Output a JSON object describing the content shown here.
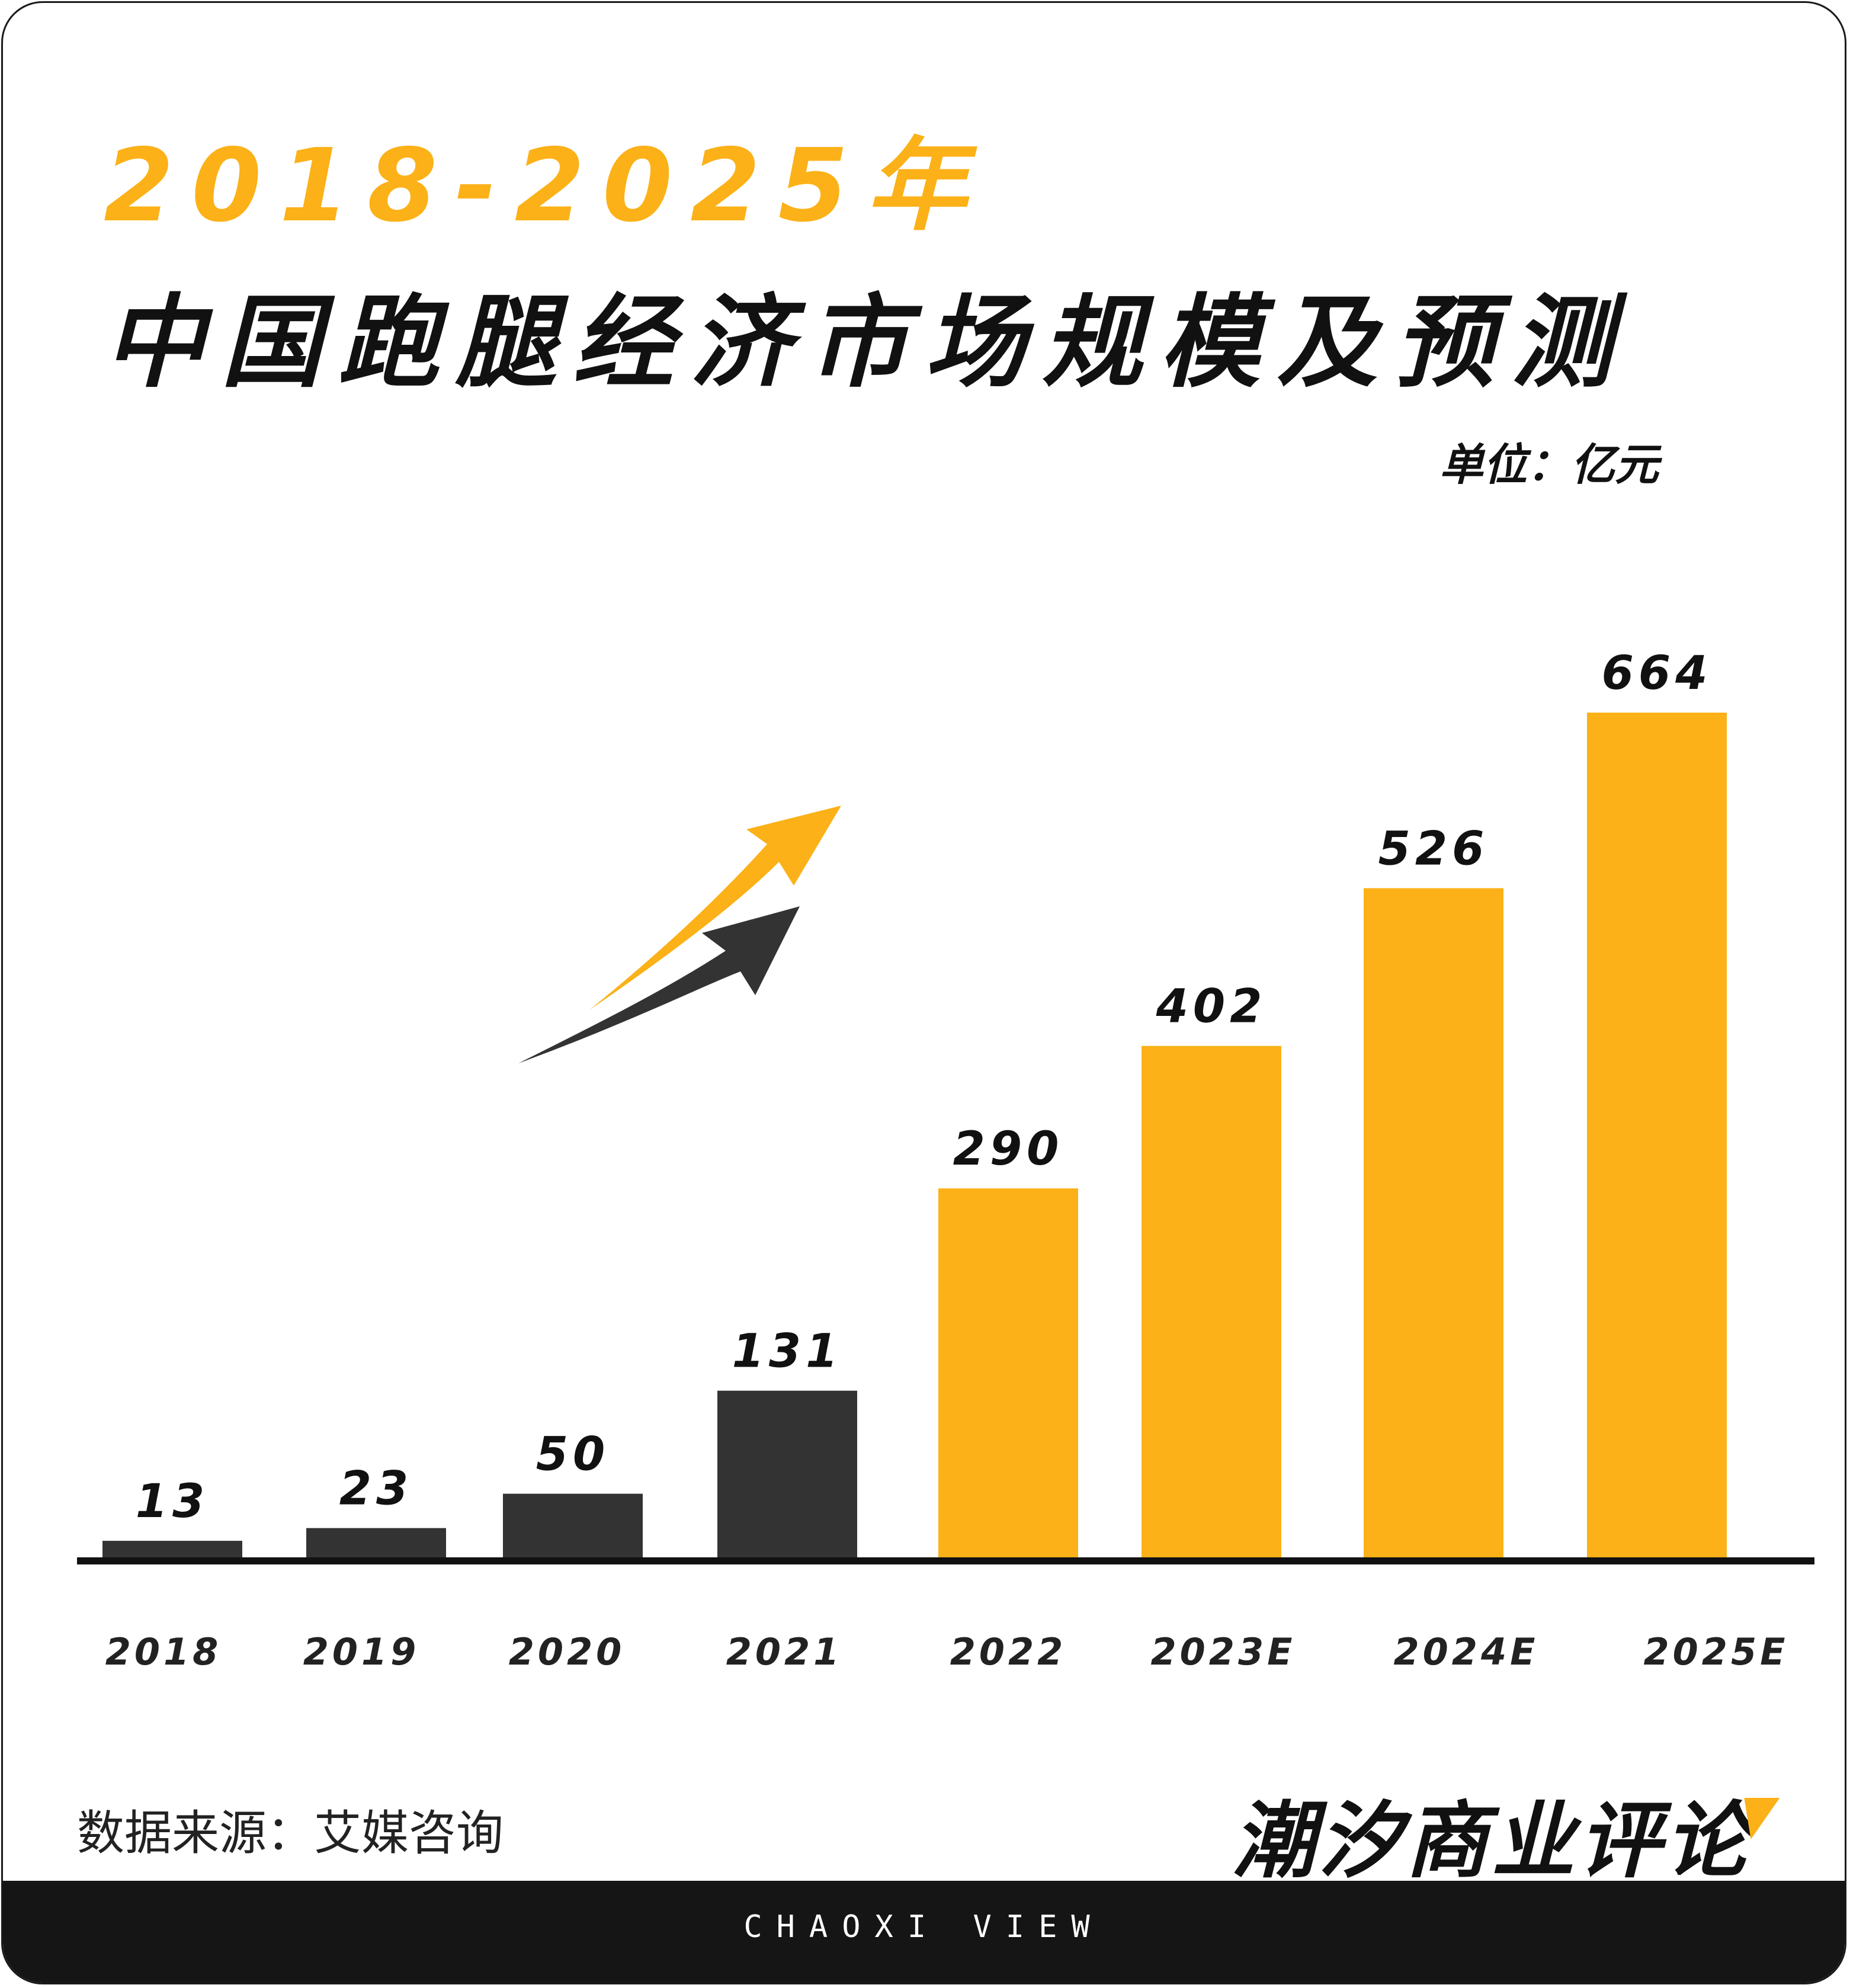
{
  "header": {
    "year_title": "2018-2025年",
    "main_title": "中国跑腿经济市场规模及预测",
    "unit": "单位：亿元"
  },
  "footer": {
    "source": "数据来源：艾媒咨询",
    "brand": "潮汐商业评论",
    "brand_en": "CHAOXI VIEW"
  },
  "colors": {
    "actual": "#333333",
    "forecast": "#fbb117",
    "axis": "#111111"
  },
  "icons": [
    "growth-arrow-icon"
  ],
  "chart_data": {
    "type": "bar",
    "categories": [
      "2018",
      "2019",
      "2020",
      "2021",
      "2022",
      "2023E",
      "2024E",
      "2025E"
    ],
    "values": [
      13,
      23,
      50,
      131,
      290,
      402,
      526,
      664
    ],
    "bar_colors": [
      "#333333",
      "#333333",
      "#333333",
      "#333333",
      "#fbb117",
      "#fbb117",
      "#fbb117",
      "#fbb117"
    ],
    "value_labels": [
      "13",
      "23",
      "50",
      "131",
      "290",
      "402",
      "526",
      "664"
    ],
    "title": "2018-2025年 中国跑腿经济市场规模及预测",
    "xlabel": "",
    "ylabel": "",
    "unit": "亿元",
    "ylim": [
      0,
      664
    ],
    "grid": false,
    "legend": "none"
  }
}
